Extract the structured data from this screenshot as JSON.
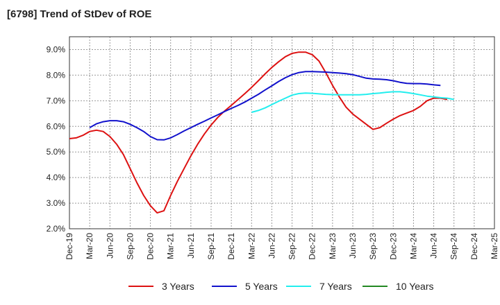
{
  "title": "[6798]  Trend of StDev of ROE",
  "chart_data": {
    "type": "line",
    "title": "[6798]  Trend of StDev of ROE",
    "xlabel": "",
    "ylabel": "",
    "ylim": [
      2.0,
      9.5
    ],
    "y_ticks": [
      2.0,
      3.0,
      4.0,
      5.0,
      6.0,
      7.0,
      8.0,
      9.0
    ],
    "y_tick_labels": [
      "2.0%",
      "3.0%",
      "4.0%",
      "5.0%",
      "6.0%",
      "7.0%",
      "8.0%",
      "9.0%"
    ],
    "x_tick_labels": [
      "Dec-19",
      "Mar-20",
      "Jun-20",
      "Sep-20",
      "Dec-20",
      "Mar-21",
      "Jun-21",
      "Sep-21",
      "Dec-21",
      "Mar-22",
      "Jun-22",
      "Sep-22",
      "Dec-22",
      "Mar-23",
      "Jun-23",
      "Sep-23",
      "Dec-23",
      "Mar-24",
      "Jun-24",
      "Sep-24",
      "Dec-24",
      "Mar-25"
    ],
    "grid": true,
    "legend_position": "bottom",
    "series": [
      {
        "name": "3 Years",
        "color": "#dd1111",
        "start": 0,
        "values": [
          5.52,
          5.55,
          5.65,
          5.8,
          5.85,
          5.8,
          5.6,
          5.3,
          4.9,
          4.35,
          3.8,
          3.3,
          2.9,
          2.62,
          2.7,
          3.3,
          3.85,
          4.35,
          4.85,
          5.3,
          5.7,
          6.05,
          6.35,
          6.6,
          6.82,
          7.05,
          7.28,
          7.52,
          7.78,
          8.05,
          8.3,
          8.52,
          8.72,
          8.85,
          8.9,
          8.9,
          8.8,
          8.55,
          8.1,
          7.6,
          7.15,
          6.75,
          6.48,
          6.28,
          6.08,
          5.88,
          5.95,
          6.12,
          6.28,
          6.42,
          6.52,
          6.62,
          6.78,
          7.0,
          7.1,
          7.1,
          7.05
        ]
      },
      {
        "name": "5 Years",
        "color": "#1111cc",
        "start": 3,
        "values": [
          5.95,
          6.1,
          6.18,
          6.22,
          6.22,
          6.18,
          6.08,
          5.95,
          5.8,
          5.6,
          5.48,
          5.47,
          5.55,
          5.68,
          5.82,
          5.95,
          6.08,
          6.2,
          6.33,
          6.45,
          6.58,
          6.7,
          6.82,
          6.95,
          7.1,
          7.25,
          7.42,
          7.58,
          7.75,
          7.9,
          8.02,
          8.1,
          8.14,
          8.14,
          8.13,
          8.12,
          8.1,
          8.08,
          8.06,
          8.02,
          7.95,
          7.88,
          7.85,
          7.84,
          7.82,
          7.78,
          7.72,
          7.68,
          7.67,
          7.67,
          7.65,
          7.62,
          7.6
        ]
      },
      {
        "name": "7 Years",
        "color": "#22eeee",
        "start": 27,
        "values": [
          6.55,
          6.62,
          6.72,
          6.85,
          6.98,
          7.1,
          7.22,
          7.28,
          7.3,
          7.29,
          7.27,
          7.25,
          7.24,
          7.23,
          7.23,
          7.23,
          7.23,
          7.25,
          7.28,
          7.3,
          7.33,
          7.35,
          7.35,
          7.32,
          7.28,
          7.23,
          7.18,
          7.15,
          7.12,
          7.1,
          7.05
        ]
      },
      {
        "name": "10 Years",
        "color": "#228822",
        "start": 0,
        "values": []
      }
    ]
  }
}
